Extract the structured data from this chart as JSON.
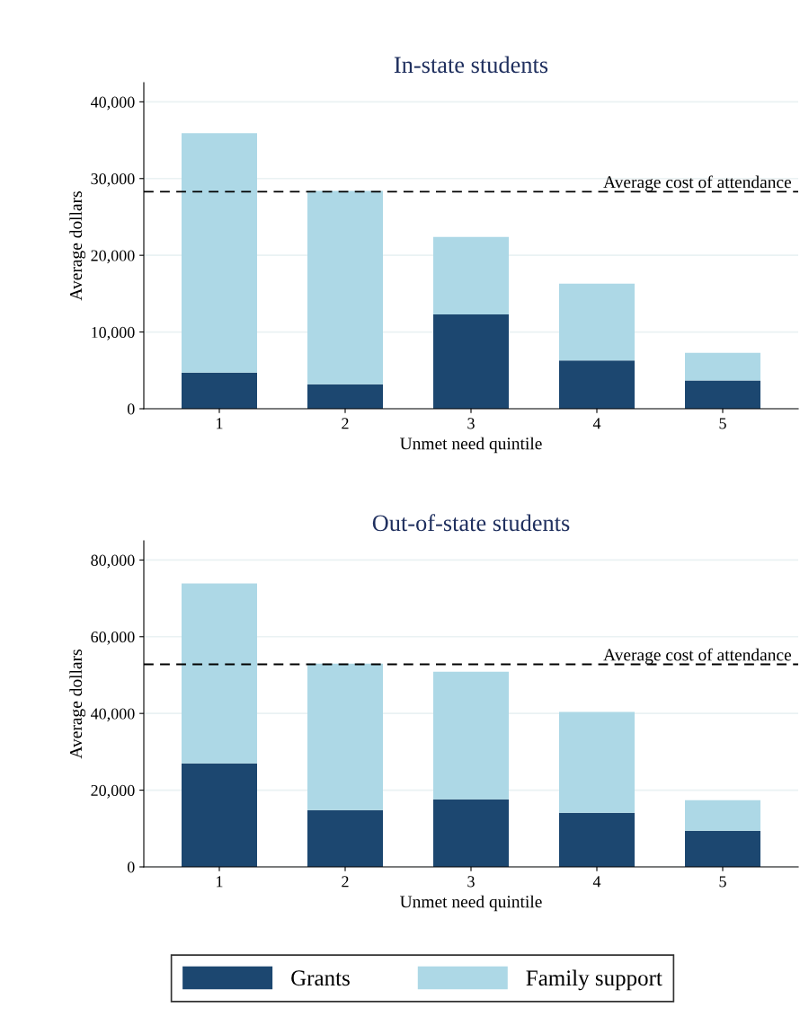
{
  "chart_data": [
    {
      "type": "bar",
      "title": "In-state students",
      "xlabel": "Unmet need quintile",
      "ylabel": "Average dollars",
      "categories": [
        "1",
        "2",
        "3",
        "4",
        "5"
      ],
      "stacked": true,
      "series": [
        {
          "name": "Grants",
          "color": "#1c4770",
          "values": [
            4700,
            3200,
            12300,
            6300,
            3700
          ]
        },
        {
          "name": "Family support",
          "color": "#add8e6",
          "values": [
            31200,
            25200,
            10100,
            10000,
            3600
          ]
        }
      ],
      "ylim": [
        0,
        42500
      ],
      "yticks": [
        {
          "value": 0,
          "label": "0"
        },
        {
          "value": 10000,
          "label": "10,000"
        },
        {
          "value": 20000,
          "label": "20,000"
        },
        {
          "value": 30000,
          "label": "30,000"
        },
        {
          "value": 40000,
          "label": "40,000"
        }
      ],
      "ref_lines": [
        {
          "axis": "y",
          "value": 28300,
          "label": "Average cost of attendance",
          "color": "#000000",
          "line_style": "dashed"
        }
      ],
      "grid": "y",
      "legend": "bottom"
    },
    {
      "type": "bar",
      "title": "Out-of-state students",
      "xlabel": "Unmet need quintile",
      "ylabel": "Average dollars",
      "categories": [
        "1",
        "2",
        "3",
        "4",
        "5"
      ],
      "stacked": true,
      "series": [
        {
          "color": "#1c4770",
          "values": [
            27000,
            14800,
            17600,
            14100,
            9400
          ]
        },
        {
          "color": "#add8e6",
          "values": [
            46900,
            38200,
            33300,
            26300,
            8000
          ]
        }
      ],
      "ylim": [
        0,
        85000
      ],
      "yticks": [
        {
          "value": 0,
          "label": "0"
        },
        {
          "value": 20000,
          "label": "20,000"
        },
        {
          "value": 40000,
          "label": "40,000"
        },
        {
          "value": 60000,
          "label": "60,000"
        },
        {
          "value": 80000,
          "label": "80,000"
        }
      ],
      "ref_lines": [
        {
          "axis": "y",
          "value": 52800,
          "label": "Average cost of attendance",
          "color": "#000000",
          "line_style": "dashed"
        }
      ],
      "grid": "y",
      "legend": false
    }
  ]
}
